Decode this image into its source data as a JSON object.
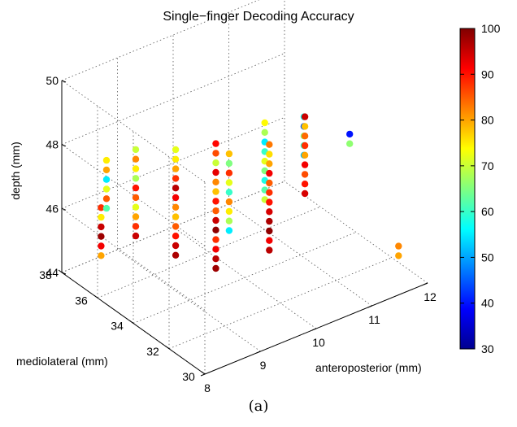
{
  "chart_data": {
    "type": "scatter",
    "subtype": "3d-scatter",
    "title": "Single−finger Decoding Accuracy",
    "caption": "(a)",
    "axes": {
      "x": {
        "label": "anteroposterior (mm)",
        "range": [
          8,
          12
        ],
        "ticks": [
          "8",
          "9",
          "10",
          "11",
          "12"
        ]
      },
      "y": {
        "label": "mediolateral (mm)",
        "range": [
          30,
          38
        ],
        "ticks": [
          "30",
          "32",
          "34",
          "36",
          "38"
        ]
      },
      "z": {
        "label": "depth (mm)",
        "range": [
          44,
          50
        ],
        "ticks": [
          "44",
          "46",
          "48",
          "50"
        ]
      }
    },
    "grid": true,
    "colorbar": {
      "range": [
        30,
        100
      ],
      "ticks": [
        "30",
        "40",
        "50",
        "60",
        "70",
        "80",
        "90",
        "100"
      ],
      "colormap": "jet"
    },
    "columns": [
      {
        "x": 8.0,
        "y": 35.8,
        "z": [
          45.4,
          45.7,
          46.0,
          46.3,
          46.6,
          46.9
        ],
        "values": [
          80,
          92,
          98,
          95,
          75,
          88
        ]
      },
      {
        "x": 8.0,
        "y": 35.5,
        "z": [
          47.0,
          47.3,
          47.6,
          47.9,
          48.2,
          48.5
        ],
        "values": [
          62,
          85,
          72,
          55,
          80,
          75
        ]
      },
      {
        "x": 8.3,
        "y": 34.8,
        "z": [
          46.2,
          46.5,
          46.8,
          47.1,
          47.4,
          47.7,
          48.0,
          48.3,
          48.6,
          48.9
        ],
        "values": [
          95,
          88,
          80,
          72,
          85,
          90,
          68,
          75,
          82,
          70
        ]
      },
      {
        "x": 8.6,
        "y": 33.5,
        "z": [
          45.9,
          46.2,
          46.5,
          46.8,
          47.1,
          47.4,
          47.7,
          48.0,
          48.3,
          48.6,
          48.9,
          49.2
        ],
        "values": [
          97,
          95,
          90,
          85,
          78,
          82,
          92,
          96,
          88,
          80,
          75,
          72
        ]
      },
      {
        "x": 9.0,
        "y": 32.5,
        "z": [
          45.6,
          45.9,
          46.2,
          46.5,
          46.8,
          47.1,
          47.4,
          47.7,
          48.0,
          48.3,
          48.6,
          48.9,
          49.2,
          49.5
        ],
        "values": [
          98,
          96,
          92,
          88,
          99,
          95,
          85,
          90,
          78,
          82,
          93,
          70,
          86,
          91
        ]
      },
      {
        "x": 9.4,
        "y": 33.0,
        "z": [
          46.3,
          46.6,
          46.9,
          47.2,
          47.5,
          47.8,
          48.1,
          48.4,
          48.7
        ],
        "values": [
          55,
          68,
          75,
          82,
          60,
          72,
          88,
          65,
          78
        ]
      },
      {
        "x": 9.8,
        "y": 32.0,
        "z": [
          45.8,
          46.1,
          46.4,
          46.7,
          47.0,
          47.3,
          47.6,
          47.9,
          48.2,
          48.5,
          48.8,
          49.1
        ],
        "values": [
          96,
          92,
          99,
          97,
          94,
          90,
          88,
          85,
          92,
          80,
          76,
          83
        ]
      },
      {
        "x": 10.2,
        "y": 33.5,
        "z": [
          46.5,
          46.8,
          47.1,
          47.4,
          47.7,
          48.0,
          48.3,
          48.6,
          48.9
        ],
        "values": [
          70,
          62,
          58,
          65,
          72,
          60,
          55,
          68,
          74
        ]
      },
      {
        "x": 10.6,
        "y": 32.5,
        "z": [
          46.8,
          47.1,
          47.4,
          47.7,
          48.0,
          48.3,
          48.6,
          48.9,
          49.2
        ],
        "values": [
          94,
          90,
          86,
          92,
          80,
          88,
          84,
          78,
          95
        ]
      },
      {
        "x": 11.0,
        "y": 33.8,
        "z": [
          47.2,
          47.5,
          47.8,
          48.1,
          48.4
        ],
        "values": [
          52,
          60,
          66,
          45,
          57
        ]
      },
      {
        "x": 11.5,
        "y": 32.8,
        "z": [
          47.6,
          47.9
        ],
        "values": [
          66,
          40
        ]
      },
      {
        "x": 11.8,
        "y": 31.0,
        "z": [
          44.6,
          44.9
        ],
        "values": [
          80,
          82
        ]
      }
    ]
  }
}
